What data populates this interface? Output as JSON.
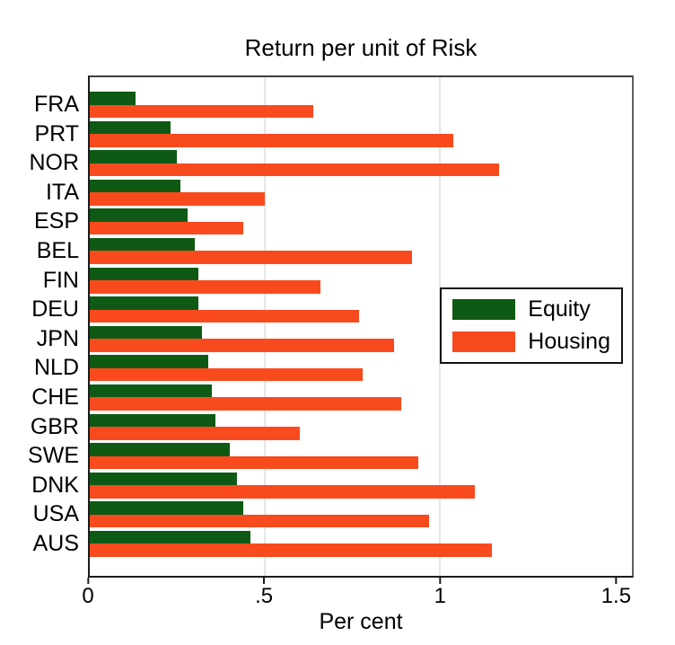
{
  "title": "Return per unit of Risk",
  "xlabel": "Per cent",
  "colors": {
    "equity": "#0e5a14",
    "housing": "#f94a1e",
    "gridline": "#e6e6e6",
    "axis": "#1c1c1c"
  },
  "chart_data": {
    "type": "bar",
    "orientation": "horizontal",
    "title": "Return per unit of Risk",
    "xlabel": "Per cent",
    "categories": [
      "FRA",
      "PRT",
      "NOR",
      "ITA",
      "ESP",
      "BEL",
      "FIN",
      "DEU",
      "JPN",
      "NLD",
      "CHE",
      "GBR",
      "SWE",
      "DNK",
      "USA",
      "AUS"
    ],
    "series": [
      {
        "name": "Equity",
        "color": "#0e5a14",
        "values": [
          0.13,
          0.23,
          0.25,
          0.26,
          0.28,
          0.3,
          0.31,
          0.31,
          0.32,
          0.34,
          0.35,
          0.36,
          0.4,
          0.42,
          0.44,
          0.46
        ]
      },
      {
        "name": "Housing",
        "color": "#f94a1e",
        "values": [
          0.64,
          1.04,
          1.17,
          0.5,
          0.44,
          0.92,
          0.66,
          0.77,
          0.87,
          0.78,
          0.89,
          0.6,
          0.94,
          1.1,
          0.97,
          1.15
        ]
      }
    ],
    "x_ticks": [
      {
        "value": 0,
        "label": "0"
      },
      {
        "value": 0.5,
        "label": ".5"
      },
      {
        "value": 1,
        "label": "1"
      },
      {
        "value": 1.5,
        "label": "1.5"
      }
    ],
    "xlim": [
      0,
      1.55
    ],
    "gridlines": [
      0.5,
      1.0
    ],
    "grid_on": true,
    "legend_position": "middle-right",
    "legend_entries": [
      "Equity",
      "Housing"
    ]
  }
}
